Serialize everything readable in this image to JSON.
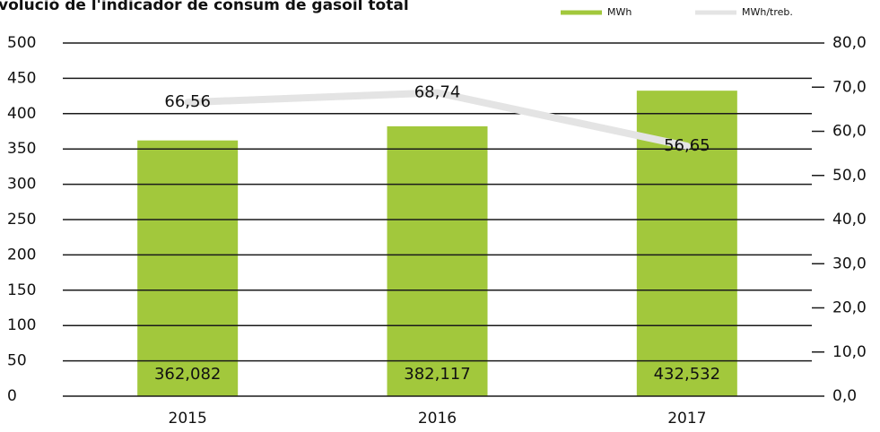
{
  "chart_data": {
    "type": "bar",
    "title": "volució de l'indicador de consum de gasoil total",
    "categories": [
      "2015",
      "2016",
      "2017"
    ],
    "series": [
      {
        "name": "MWh",
        "type": "bar",
        "color": "#a2c83c",
        "values": [
          362.082,
          382.117,
          432.532
        ],
        "value_labels": [
          "362,082",
          "382,117",
          "432,532"
        ]
      },
      {
        "name": "MWh/treb.",
        "type": "line",
        "axis": "y2",
        "color": "#e4e4e4",
        "values": [
          66.56,
          68.74,
          56.65
        ],
        "value_labels": [
          "66,56",
          "68,74",
          "56,65"
        ]
      }
    ],
    "ylim": [
      0,
      500
    ],
    "yticks": [
      0,
      50,
      100,
      150,
      200,
      250,
      300,
      350,
      400,
      450,
      500
    ],
    "y2lim": [
      0,
      80
    ],
    "y2ticks": [
      {
        "value": 0,
        "label": "0,0"
      },
      {
        "value": 10,
        "label": "10,0"
      },
      {
        "value": 20,
        "label": "20,0"
      },
      {
        "value": 30,
        "label": "30,0"
      },
      {
        "value": 40,
        "label": "40,0"
      },
      {
        "value": 50,
        "label": "50,0"
      },
      {
        "value": 60,
        "label": "60,0"
      },
      {
        "value": 70,
        "label": "70,0"
      },
      {
        "value": 80,
        "label": "80,0"
      }
    ],
    "grid": true
  }
}
